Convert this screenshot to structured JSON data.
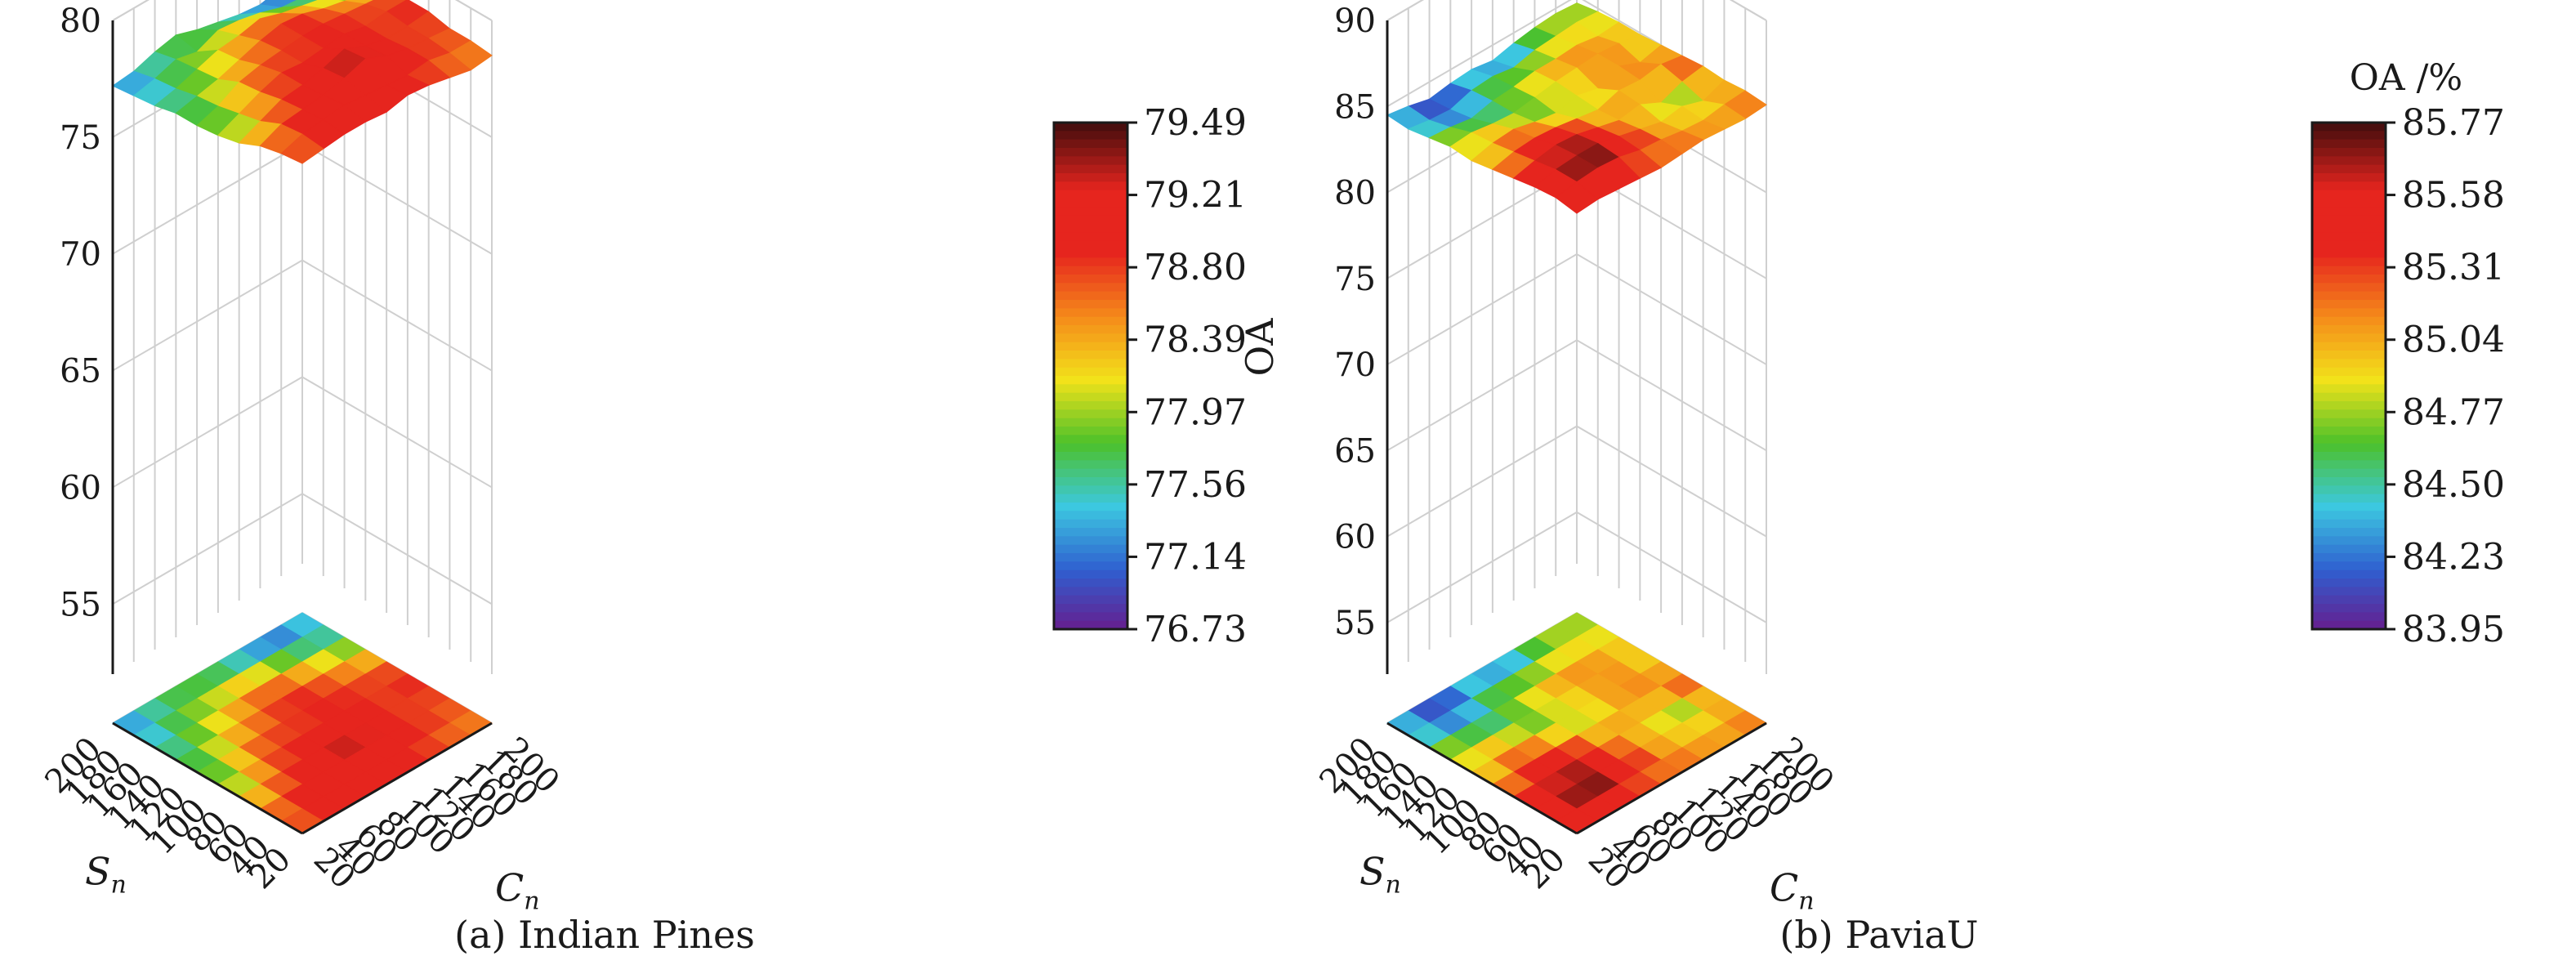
{
  "chart_data": [
    {
      "type": "surface3d",
      "caption": "(a) Indian Pines",
      "z_unit": "%",
      "z_label": "OA",
      "colorbar_title": "",
      "x_label": "S",
      "x_label_sub": "n",
      "y_label": "C",
      "y_label_sub": "n",
      "x_ticks": [
        20,
        40,
        60,
        80,
        100,
        120,
        140,
        160,
        180,
        200
      ],
      "y_ticks": [
        20,
        40,
        60,
        80,
        100,
        120,
        140,
        160,
        180,
        200
      ],
      "z_ticks": [
        55,
        60,
        65,
        70,
        75,
        80
      ],
      "zlim": [
        52,
        80
      ],
      "colorbar_ticks": [
        "79.49",
        "79.21",
        "78.80",
        "78.39",
        "77.97",
        "77.56",
        "77.14",
        "76.73"
      ],
      "colorbar_range": [
        76.73,
        79.49
      ],
      "has_floor_projection": true,
      "grid": true,
      "colors": {
        "low": "#6a1a8a",
        "blue": "#2f5fd0",
        "cyan": "#3cc8e0",
        "green": "#4cc12a",
        "yellow": "#f2e21a",
        "orange": "#f58a1a",
        "red": "#e6251e",
        "high": "#4a0e0e"
      },
      "values": [
        [
          78.6,
          78.7,
          78.8,
          78.8,
          78.7,
          78.9,
          78.8,
          78.6,
          78.4,
          78.5
        ],
        [
          78.5,
          78.8,
          78.9,
          79.0,
          78.9,
          78.8,
          78.7,
          78.8,
          78.6,
          78.6
        ],
        [
          78.3,
          78.7,
          78.8,
          78.9,
          79.1,
          79.4,
          79.0,
          78.8,
          78.7,
          78.6
        ],
        [
          77.9,
          78.3,
          78.7,
          78.8,
          79.0,
          79.3,
          78.9,
          78.7,
          78.7,
          78.8
        ],
        [
          77.7,
          78.1,
          78.5,
          78.8,
          78.7,
          78.8,
          78.9,
          78.7,
          78.8,
          78.8
        ],
        [
          77.6,
          77.9,
          78.4,
          78.6,
          78.7,
          78.8,
          78.8,
          78.7,
          78.6,
          78.5
        ],
        [
          77.6,
          77.8,
          78.0,
          78.3,
          78.6,
          78.8,
          78.7,
          78.4,
          78.2,
          78.0
        ],
        [
          77.4,
          77.6,
          77.9,
          78.2,
          78.3,
          78.5,
          78.2,
          78.0,
          77.8,
          77.6
        ],
        [
          77.3,
          77.5,
          77.8,
          77.6,
          78.0,
          77.9,
          77.7,
          77.4,
          77.3,
          77.5
        ],
        [
          77.2,
          77.3,
          77.6,
          77.8,
          77.5,
          77.3,
          77.1,
          77.0,
          77.2,
          77.6
        ]
      ]
    },
    {
      "type": "surface3d",
      "caption": "(b) PaviaU",
      "z_unit": "%",
      "z_label": "OA",
      "colorbar_title": "OA /%",
      "x_label": "S",
      "x_label_sub": "n",
      "y_label": "C",
      "y_label_sub": "n",
      "x_ticks": [
        20,
        40,
        60,
        80,
        100,
        120,
        140,
        160,
        180,
        200
      ],
      "y_ticks": [
        20,
        40,
        60,
        80,
        100,
        120,
        140,
        160,
        180,
        200
      ],
      "z_ticks": [
        55,
        60,
        65,
        70,
        75,
        80,
        85,
        90
      ],
      "zlim": [
        52,
        90
      ],
      "colorbar_ticks": [
        "85.77",
        "85.58",
        "85.31",
        "85.04",
        "84.77",
        "84.50",
        "84.23",
        "83.95"
      ],
      "colorbar_range": [
        83.95,
        85.77
      ],
      "has_floor_projection": true,
      "grid": true,
      "colors": {
        "low": "#6a1a8a",
        "blue": "#2f5fd0",
        "cyan": "#3cc8e0",
        "green": "#4cc12a",
        "yellow": "#f2e21a",
        "orange": "#f58a1a",
        "red": "#e6251e",
        "high": "#4a0e0e"
      },
      "values": [
        [
          85.2,
          85.3,
          85.2,
          85.1,
          85.0,
          85.1,
          85.2,
          85.1,
          85.0,
          85.1
        ],
        [
          85.4,
          85.6,
          85.7,
          85.6,
          85.3,
          85.2,
          85.0,
          84.9,
          85.1,
          85.2
        ],
        [
          85.3,
          85.6,
          85.7,
          85.7,
          85.4,
          85.1,
          84.8,
          85.0,
          84.6,
          85.1
        ],
        [
          85.1,
          85.4,
          85.6,
          85.5,
          85.2,
          84.9,
          85.1,
          84.5,
          85.0,
          85.2
        ],
        [
          84.9,
          85.2,
          85.3,
          85.2,
          85.0,
          84.8,
          85.2,
          85.1,
          85.3,
          85.1
        ],
        [
          84.7,
          85.0,
          85.1,
          84.8,
          84.6,
          84.9,
          84.6,
          85.2,
          84.7,
          85.0
        ],
        [
          84.8,
          84.9,
          84.7,
          84.6,
          84.8,
          85.0,
          85.1,
          85.2,
          85.1,
          84.9
        ],
        [
          84.6,
          84.5,
          84.3,
          84.6,
          84.7,
          84.9,
          84.9,
          85.0,
          84.8,
          84.9
        ],
        [
          84.4,
          84.2,
          84.1,
          84.5,
          84.6,
          84.4,
          84.7,
          84.8,
          84.9,
          84.8
        ],
        [
          84.5,
          84.3,
          84.0,
          84.2,
          84.3,
          84.1,
          84.4,
          84.6,
          84.7,
          84.6
        ]
      ]
    }
  ]
}
